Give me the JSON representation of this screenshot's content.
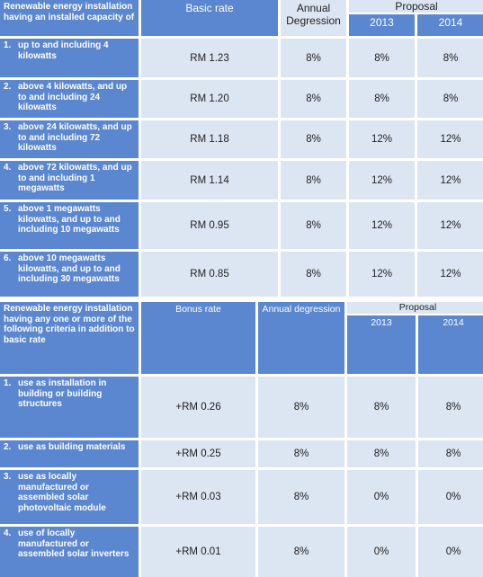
{
  "table1": {
    "header": {
      "label": "Renewable energy installation having an installed capacity of",
      "basic_rate": "Basic rate",
      "annual": "Annual Degression",
      "proposal": "Proposal",
      "y2013": "2013",
      "y2014": "2014"
    },
    "rows": [
      {
        "num": "1.",
        "label": "up to and including 4 kilowatts",
        "rate": "RM 1.23",
        "annual": "8%",
        "y2013": "8%",
        "y2014": "8%"
      },
      {
        "num": "2.",
        "label": "above 4 kilowatts, and up to and including 24 kilowatts",
        "rate": "RM 1.20",
        "annual": "8%",
        "y2013": "8%",
        "y2014": "8%"
      },
      {
        "num": "3.",
        "label": "above 24 kilowatts, and up to and including 72 kilowatts",
        "rate": "RM 1.18",
        "annual": "8%",
        "y2013": "12%",
        "y2014": "12%"
      },
      {
        "num": "4.",
        "label": "above 72 kilowatts, and up to and including 1 megawatts",
        "rate": "RM 1.14",
        "annual": "8%",
        "y2013": "12%",
        "y2014": "12%"
      },
      {
        "num": "5.",
        "label": "above 1 megawatts kilowatts, and up to and including 10 megawatts",
        "rate": "RM 0.95",
        "annual": "8%",
        "y2013": "12%",
        "y2014": "12%"
      },
      {
        "num": "6.",
        "label": "above 10 megawatts kilowatts, and up to and including 30 megawatts",
        "rate": "RM 0.85",
        "annual": "8%",
        "y2013": "12%",
        "y2014": "12%"
      }
    ]
  },
  "table2": {
    "header": {
      "label": "Renewable energy installation having any one or more of the following criteria in addition to basic rate",
      "bonus_rate": "Bonus rate",
      "annual": "Annual degression",
      "proposal": "Proposal",
      "y2013": "2013",
      "y2014": "2014"
    },
    "rows": [
      {
        "num": "1.",
        "label": "use as installation in building or building structures",
        "rate": "+RM 0.26",
        "annual": "8%",
        "y2013": "8%",
        "y2014": "8%"
      },
      {
        "num": "2.",
        "label": "use as building materials",
        "rate": "+RM 0.25",
        "annual": "8%",
        "y2013": "8%",
        "y2014": "8%"
      },
      {
        "num": "3.",
        "label": "use as locally manufactured or assembled solar photovoltaic module",
        "rate": "+RM 0.03",
        "annual": "8%",
        "y2013": "0%",
        "y2014": "0%"
      },
      {
        "num": "4.",
        "label": "use of locally manufactured or assembled solar inverters",
        "rate": "+RM 0.01",
        "annual": "8%",
        "y2013": "0%",
        "y2014": "0%"
      }
    ]
  },
  "colors": {
    "header_blue": "#5b87d0",
    "cell_light": "#dce5f2"
  }
}
